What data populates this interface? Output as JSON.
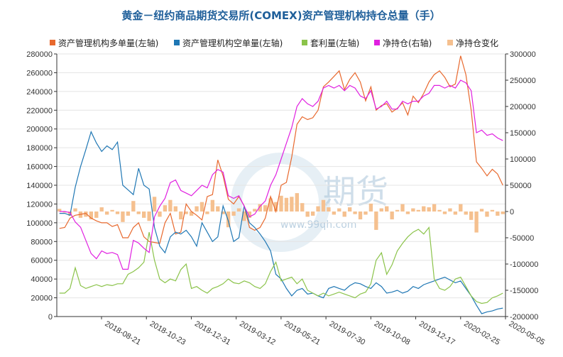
{
  "chart_data": {
    "type": "line",
    "title": "黄金－纽约商品期货交易所(COMEX)资产管理机构持仓总量（手）",
    "left_axis": {
      "ylim": [
        0,
        280000
      ],
      "ticks": [
        0,
        20000,
        40000,
        60000,
        80000,
        100000,
        120000,
        140000,
        160000,
        180000,
        200000,
        220000,
        240000,
        260000,
        280000
      ]
    },
    "right_axis": {
      "ylim": [
        -200000,
        300000
      ],
      "ticks": [
        -200000,
        -150000,
        -100000,
        -50000,
        0,
        50000,
        100000,
        150000,
        200000,
        250000,
        300000
      ]
    },
    "x_tick_labels": [
      "2018-08-21",
      "2018-10-23",
      "2018-12-31",
      "2019-03-12",
      "2019-05-21",
      "2019-07-30",
      "2019-10-08",
      "2019-12-17",
      "2020-02-25",
      "2020-05-05"
    ],
    "legend_position": "top",
    "watermark": {
      "brand": "期货",
      "url": "www.99qh.com"
    },
    "series": [
      {
        "name": "资产管理机构多单量(左轴)",
        "axis": "left",
        "kind": "line",
        "color": "#e8692e",
        "values": [
          94000,
          95000,
          105000,
          108000,
          109000,
          110000,
          105000,
          102000,
          100000,
          100000,
          96000,
          98000,
          84000,
          84000,
          95000,
          100000,
          85000,
          80000,
          79000,
          78000,
          100000,
          110000,
          88000,
          90000,
          120000,
          112000,
          108000,
          103000,
          128000,
          130000,
          167000,
          150000,
          125000,
          120000,
          128000,
          118000,
          95000,
          92000,
          95000,
          105000,
          128000,
          112000,
          140000,
          143000,
          170000,
          205000,
          213000,
          210000,
          212000,
          220000,
          245000,
          250000,
          256000,
          262000,
          242000,
          253000,
          260000,
          250000,
          230000,
          245000,
          220000,
          225000,
          227000,
          218000,
          222000,
          228000,
          215000,
          235000,
          228000,
          238000,
          250000,
          258000,
          262000,
          255000,
          245000,
          248000,
          278000,
          258000,
          220000,
          165000,
          158000,
          150000,
          157000,
          152000,
          140000
        ]
      },
      {
        "name": "资产管理机构空单量(左轴)",
        "axis": "left",
        "kind": "line",
        "color": "#1f77b4",
        "values": [
          110000,
          110000,
          108000,
          138000,
          160000,
          178000,
          197000,
          185000,
          176000,
          182000,
          178000,
          186000,
          140000,
          135000,
          130000,
          158000,
          140000,
          136000,
          95000,
          75000,
          68000,
          85000,
          90000,
          88000,
          92000,
          85000,
          75000,
          100000,
          90000,
          80000,
          85000,
          118000,
          102000,
          80000,
          84000,
          118000,
          100000,
          95000,
          88000,
          80000,
          70000,
          45000,
          40000,
          30000,
          22000,
          28000,
          30000,
          24000,
          25000,
          22000,
          20000,
          30000,
          32000,
          30000,
          28000,
          33000,
          36000,
          35000,
          32000,
          30000,
          36000,
          32000,
          25000,
          26000,
          28000,
          25000,
          27000,
          32000,
          30000,
          34000,
          36000,
          38000,
          40000,
          42000,
          39000,
          36000,
          38000,
          30000,
          22000,
          12000,
          3000,
          5000,
          6000,
          8000,
          9000
        ]
      },
      {
        "name": "套利量(左轴)",
        "axis": "left",
        "kind": "line",
        "color": "#8bc34a",
        "values": [
          25000,
          25000,
          30000,
          52000,
          33000,
          30000,
          32000,
          34000,
          32000,
          34000,
          33000,
          35000,
          35000,
          45000,
          48000,
          52000,
          58000,
          90000,
          60000,
          40000,
          36000,
          40000,
          38000,
          50000,
          56000,
          30000,
          32000,
          28000,
          25000,
          30000,
          32000,
          35000,
          40000,
          36000,
          35000,
          38000,
          36000,
          32000,
          30000,
          35000,
          48000,
          58000,
          38000,
          40000,
          42000,
          35000,
          40000,
          28000,
          25000,
          22000,
          25000,
          22000,
          24000,
          26000,
          24000,
          22000,
          20000,
          24000,
          26000,
          35000,
          60000,
          68000,
          45000,
          55000,
          70000,
          78000,
          85000,
          90000,
          93000,
          88000,
          95000,
          40000,
          30000,
          28000,
          32000,
          40000,
          42000,
          32000,
          22000,
          16000,
          14000,
          15000,
          20000,
          22000,
          25000
        ]
      },
      {
        "name": "净持仓(右轴)",
        "axis": "right",
        "kind": "line",
        "color": "#e020e0",
        "values": [
          0,
          0,
          -2000,
          -20000,
          -30000,
          -55000,
          -80000,
          -90000,
          -75000,
          -80000,
          -78000,
          -82000,
          -110000,
          -110000,
          -55000,
          -60000,
          -70000,
          -78000,
          -10000,
          10000,
          25000,
          55000,
          60000,
          40000,
          35000,
          30000,
          40000,
          50000,
          45000,
          70000,
          80000,
          75000,
          30000,
          25000,
          30000,
          10000,
          -10000,
          -5000,
          10000,
          20000,
          50000,
          70000,
          100000,
          130000,
          160000,
          200000,
          215000,
          205000,
          200000,
          210000,
          235000,
          240000,
          235000,
          240000,
          230000,
          240000,
          235000,
          220000,
          215000,
          230000,
          195000,
          200000,
          210000,
          195000,
          195000,
          210000,
          205000,
          210000,
          210000,
          220000,
          225000,
          240000,
          240000,
          235000,
          240000,
          235000,
          250000,
          245000,
          230000,
          150000,
          155000,
          145000,
          148000,
          140000,
          135000
        ]
      },
      {
        "name": "净持仓变化",
        "axis": "right",
        "kind": "bar",
        "color": "#f5c08f",
        "values": [
          5000,
          -2000,
          -8000,
          6000,
          -12000,
          -10000,
          -15000,
          -12000,
          8000,
          -6000,
          3000,
          -5000,
          -20000,
          -8000,
          20000,
          -5000,
          -12000,
          -18000,
          28000,
          -10000,
          12000,
          22000,
          10000,
          -15000,
          -5000,
          -8000,
          10000,
          18000,
          -5000,
          22000,
          10000,
          -5000,
          -30000,
          -8000,
          6000,
          -18000,
          -12000,
          5000,
          14000,
          12000,
          25000,
          18000,
          30000,
          26000,
          28000,
          35000,
          16000,
          -10000,
          -8000,
          10000,
          22000,
          8000,
          -6000,
          6000,
          -10000,
          8000,
          -5000,
          -15000,
          -6000,
          15000,
          -35000,
          6000,
          10000,
          -15000,
          3000,
          14000,
          -5000,
          6000,
          3000,
          10000,
          8000,
          14000,
          3000,
          -5000,
          6000,
          -6000,
          14000,
          -6000,
          -16000,
          -40000,
          5000,
          -10000,
          3000,
          -8000,
          -5000
        ]
      }
    ]
  }
}
